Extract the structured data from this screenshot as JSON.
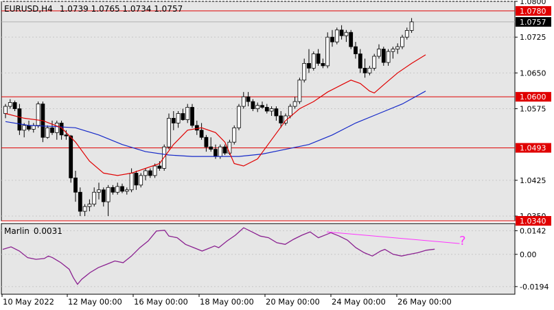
{
  "header": {
    "symbol": "EURUSD,H4",
    "ohlc": "1.0739 1.0765 1.0734 1.0757"
  },
  "indicator": {
    "name": "Marlin",
    "value": "0.0031",
    "question_mark": "?"
  },
  "colors": {
    "background": "#e6e6e6",
    "bull": "#ffffff",
    "bear": "#000000",
    "level": "#e00000",
    "ma_fast": "#e00000",
    "ma_slow": "#1428c8",
    "oscillator": "#8a2090",
    "divergence": "#ff33ff"
  },
  "chart_data": [
    {
      "type": "candlestick",
      "symbol": "EURUSD",
      "timeframe": "H4",
      "ylim": [
        1.034,
        1.08
      ],
      "price_ticks": [
        "1.0800",
        "1.0725",
        "1.0650",
        "1.0575",
        "1.0425",
        "1.0350"
      ],
      "current_price": "1.0757",
      "levels": [
        "1.0780",
        "1.0600",
        "1.0493",
        "1.0340"
      ],
      "x_labels": [
        "10 May 2022",
        "12 May 00:00",
        "16 May 00:00",
        "18 May 00:00",
        "20 May 00:00",
        "24 May 00:00",
        "26 May 00:00"
      ],
      "candles": [
        [
          1.0565,
          1.0585,
          1.0555,
          1.058
        ],
        [
          1.058,
          1.0595,
          1.0575,
          1.0588
        ],
        [
          1.0588,
          1.0592,
          1.057,
          1.0575
        ],
        [
          1.0575,
          1.0585,
          1.052,
          1.053
        ],
        [
          1.053,
          1.0545,
          1.0515,
          1.054
        ],
        [
          1.054,
          1.055,
          1.0528,
          1.0532
        ],
        [
          1.0532,
          1.0545,
          1.0525,
          1.054
        ],
        [
          1.054,
          1.059,
          1.0535,
          1.0585
        ],
        [
          1.0585,
          1.059,
          1.0505,
          1.0515
        ],
        [
          1.0515,
          1.054,
          1.0512,
          1.0535
        ],
        [
          1.0535,
          1.055,
          1.052,
          1.0525
        ],
        [
          1.0525,
          1.055,
          1.051,
          1.0545
        ],
        [
          1.0545,
          1.055,
          1.051,
          1.052
        ],
        [
          1.052,
          1.053,
          1.051,
          1.0518
        ],
        [
          1.0518,
          1.052,
          1.042,
          1.043
        ],
        [
          1.043,
          1.0445,
          1.038,
          1.04
        ],
        [
          1.04,
          1.041,
          1.035,
          1.036
        ],
        [
          1.036,
          1.0375,
          1.035,
          1.037
        ],
        [
          1.037,
          1.0385,
          1.036,
          1.0375
        ],
        [
          1.0375,
          1.041,
          1.037,
          1.04
        ],
        [
          1.04,
          1.042,
          1.0385,
          1.0405
        ],
        [
          1.0405,
          1.041,
          1.037,
          1.038
        ],
        [
          1.038,
          1.0415,
          1.035,
          1.041
        ],
        [
          1.041,
          1.0415,
          1.0395,
          1.04
        ],
        [
          1.04,
          1.042,
          1.0395,
          1.0412
        ],
        [
          1.0412,
          1.0418,
          1.0398,
          1.0402
        ],
        [
          1.0402,
          1.041,
          1.0395,
          1.0405
        ],
        [
          1.0405,
          1.045,
          1.04,
          1.044
        ],
        [
          1.044,
          1.0445,
          1.0405,
          1.0415
        ],
        [
          1.0415,
          1.044,
          1.041,
          1.0435
        ],
        [
          1.0435,
          1.045,
          1.0425,
          1.0445
        ],
        [
          1.0445,
          1.045,
          1.043,
          1.0435
        ],
        [
          1.0435,
          1.046,
          1.043,
          1.0455
        ],
        [
          1.0455,
          1.0465,
          1.0445,
          1.045
        ],
        [
          1.045,
          1.05,
          1.0445,
          1.0495
        ],
        [
          1.0495,
          1.0565,
          1.049,
          1.0555
        ],
        [
          1.0555,
          1.057,
          1.053,
          1.0545
        ],
        [
          1.0545,
          1.057,
          1.0535,
          1.0565
        ],
        [
          1.0565,
          1.0575,
          1.055,
          1.0552
        ],
        [
          1.0552,
          1.0585,
          1.0545,
          1.0578
        ],
        [
          1.0578,
          1.0585,
          1.0535,
          1.054
        ],
        [
          1.054,
          1.055,
          1.052,
          1.053
        ],
        [
          1.053,
          1.0545,
          1.051,
          1.0515
        ],
        [
          1.0515,
          1.052,
          1.0485,
          1.0495
        ],
        [
          1.0495,
          1.0515,
          1.0485,
          1.049
        ],
        [
          1.049,
          1.05,
          1.047,
          1.0475
        ],
        [
          1.0475,
          1.05,
          1.047,
          1.0495
        ],
        [
          1.0495,
          1.05,
          1.0478,
          1.0482
        ],
        [
          1.0482,
          1.051,
          1.0478,
          1.0505
        ],
        [
          1.0505,
          1.054,
          1.05,
          1.0535
        ],
        [
          1.0535,
          1.0585,
          1.053,
          1.058
        ],
        [
          1.058,
          1.061,
          1.0575,
          1.06
        ],
        [
          1.06,
          1.061,
          1.058,
          1.059
        ],
        [
          1.059,
          1.0595,
          1.057,
          1.0575
        ],
        [
          1.0575,
          1.0588,
          1.0568,
          1.0582
        ],
        [
          1.0582,
          1.059,
          1.0575,
          1.0578
        ],
        [
          1.0578,
          1.0585,
          1.0565,
          1.057
        ],
        [
          1.057,
          1.058,
          1.056,
          1.0575
        ],
        [
          1.0575,
          1.058,
          1.055,
          1.056
        ],
        [
          1.056,
          1.057,
          1.0535,
          1.0545
        ],
        [
          1.0545,
          1.0565,
          1.054,
          1.056
        ],
        [
          1.056,
          1.0585,
          1.0555,
          1.058
        ],
        [
          1.058,
          1.06,
          1.0575,
          1.059
        ],
        [
          1.059,
          1.064,
          1.0585,
          1.0635
        ],
        [
          1.0635,
          1.068,
          1.063,
          1.067
        ],
        [
          1.067,
          1.07,
          1.065,
          1.066
        ],
        [
          1.066,
          1.0695,
          1.0655,
          1.069
        ],
        [
          1.069,
          1.07,
          1.0665,
          1.067
        ],
        [
          1.067,
          1.068,
          1.066,
          1.0665
        ],
        [
          1.0665,
          1.0735,
          1.066,
          1.0725
        ],
        [
          1.0725,
          1.074,
          1.0705,
          1.0715
        ],
        [
          1.0715,
          1.0745,
          1.071,
          1.074
        ],
        [
          1.074,
          1.075,
          1.072,
          1.0728
        ],
        [
          1.0728,
          1.074,
          1.0715,
          1.0735
        ],
        [
          1.0735,
          1.074,
          1.07,
          1.0705
        ],
        [
          1.0705,
          1.0715,
          1.068,
          1.069
        ],
        [
          1.069,
          1.07,
          1.065,
          1.066
        ],
        [
          1.066,
          1.068,
          1.064,
          1.065
        ],
        [
          1.065,
          1.0665,
          1.0645,
          1.066
        ],
        [
          1.066,
          1.069,
          1.0655,
          1.0685
        ],
        [
          1.0685,
          1.071,
          1.068,
          1.07
        ],
        [
          1.07,
          1.0705,
          1.0665,
          1.0672
        ],
        [
          1.0672,
          1.07,
          1.0665,
          1.0695
        ],
        [
          1.0695,
          1.0705,
          1.068,
          1.07
        ],
        [
          1.07,
          1.0712,
          1.069,
          1.0705
        ],
        [
          1.0705,
          1.073,
          1.07,
          1.0725
        ],
        [
          1.0725,
          1.0745,
          1.072,
          1.0739
        ],
        [
          1.0739,
          1.0765,
          1.0734,
          1.0757
        ]
      ],
      "ma_fast": [
        [
          0,
          1.0565
        ],
        [
          4,
          1.0555
        ],
        [
          8,
          1.055
        ],
        [
          12,
          1.0535
        ],
        [
          15,
          1.0505
        ],
        [
          18,
          1.0465
        ],
        [
          21,
          1.044
        ],
        [
          24,
          1.0435
        ],
        [
          27,
          1.044
        ],
        [
          30,
          1.045
        ],
        [
          33,
          1.046
        ],
        [
          36,
          1.05
        ],
        [
          39,
          1.053
        ],
        [
          42,
          1.0535
        ],
        [
          45,
          1.0525
        ],
        [
          47,
          1.0505
        ],
        [
          49,
          1.046
        ],
        [
          51,
          1.0455
        ],
        [
          54,
          1.047
        ],
        [
          57,
          1.051
        ],
        [
          60,
          1.055
        ],
        [
          63,
          1.0575
        ],
        [
          66,
          1.059
        ],
        [
          69,
          1.061
        ],
        [
          72,
          1.0625
        ],
        [
          74,
          1.0635
        ],
        [
          76,
          1.0628
        ],
        [
          78,
          1.0612
        ],
        [
          79,
          1.0608
        ],
        [
          81,
          1.0625
        ],
        [
          84,
          1.065
        ],
        [
          87,
          1.067
        ],
        [
          90,
          1.0688
        ]
      ],
      "ma_slow": [
        [
          0,
          1.0548
        ],
        [
          5,
          1.054
        ],
        [
          10,
          1.0538
        ],
        [
          15,
          1.0535
        ],
        [
          20,
          1.052
        ],
        [
          25,
          1.05
        ],
        [
          30,
          1.0485
        ],
        [
          35,
          1.0478
        ],
        [
          40,
          1.0475
        ],
        [
          45,
          1.0475
        ],
        [
          50,
          1.0475
        ],
        [
          55,
          1.048
        ],
        [
          60,
          1.049
        ],
        [
          65,
          1.05
        ],
        [
          70,
          1.052
        ],
        [
          75,
          1.0545
        ],
        [
          80,
          1.0565
        ],
        [
          85,
          1.0585
        ],
        [
          90,
          1.0612
        ]
      ]
    },
    {
      "type": "line",
      "name": "Marlin",
      "ylim": [
        -0.024,
        0.0185
      ],
      "y_ticks": [
        "0.0142",
        "0.00",
        "-0.0194"
      ],
      "values": [
        [
          0,
          0.003
        ],
        [
          2,
          0.0045
        ],
        [
          4,
          0.002
        ],
        [
          6,
          -0.002
        ],
        [
          8,
          -0.003
        ],
        [
          10,
          -0.0025
        ],
        [
          11,
          -0.001
        ],
        [
          12,
          -0.002
        ],
        [
          14,
          -0.005
        ],
        [
          16,
          -0.009
        ],
        [
          17,
          -0.014
        ],
        [
          18,
          -0.018
        ],
        [
          19,
          -0.015
        ],
        [
          21,
          -0.011
        ],
        [
          23,
          -0.008
        ],
        [
          25,
          -0.006
        ],
        [
          27,
          -0.004
        ],
        [
          29,
          -0.005
        ],
        [
          31,
          -0.001
        ],
        [
          33,
          0.004
        ],
        [
          35,
          0.008
        ],
        [
          37,
          0.014
        ],
        [
          39,
          0.0145
        ],
        [
          40,
          0.011
        ],
        [
          42,
          0.01
        ],
        [
          44,
          0.006
        ],
        [
          46,
          0.004
        ],
        [
          48,
          0.002
        ],
        [
          49,
          0.003
        ],
        [
          51,
          0.005
        ],
        [
          52,
          0.004
        ],
        [
          54,
          0.008
        ],
        [
          56,
          0.0115
        ],
        [
          58,
          0.016
        ],
        [
          60,
          0.0135
        ],
        [
          62,
          0.011
        ],
        [
          64,
          0.01
        ],
        [
          66,
          0.007
        ],
        [
          68,
          0.006
        ],
        [
          70,
          0.009
        ],
        [
          72,
          0.0115
        ],
        [
          74,
          0.0135
        ],
        [
          76,
          0.01
        ],
        [
          78,
          0.012
        ],
        [
          79,
          0.013
        ],
        [
          81,
          0.011
        ],
        [
          83,
          0.0085
        ],
        [
          85,
          0.004
        ],
        [
          87,
          0.001
        ],
        [
          89,
          -0.001
        ],
        [
          91,
          0.002
        ],
        [
          92,
          0.003
        ],
        [
          94,
          0.0
        ],
        [
          96,
          -0.001
        ],
        [
          98,
          0.0
        ],
        [
          100,
          0.001
        ],
        [
          102,
          0.0025
        ],
        [
          104,
          0.0031
        ]
      ],
      "divergence_line": [
        [
          78,
          0.0135
        ],
        [
          110,
          0.0065
        ]
      ]
    }
  ]
}
